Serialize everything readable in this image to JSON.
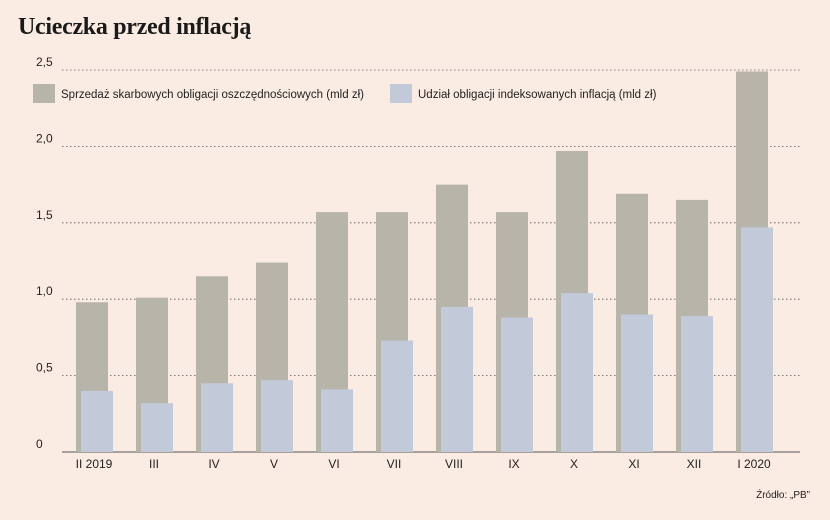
{
  "title": "Ucieczka przed inflacją",
  "source": "Źródło: „PB”",
  "colors": {
    "series1": "#b7b4a9",
    "series2": "#c2cad9",
    "grid": "#555555",
    "background": "#fbece3"
  },
  "chart_data": {
    "type": "bar",
    "categories": [
      "II 2019",
      "III",
      "IV",
      "V",
      "VI",
      "VII",
      "VIII",
      "IX",
      "X",
      "XI",
      "XII",
      "I 2020"
    ],
    "series": [
      {
        "name": "Sprzedaż skarbowych obligacji oszczędnościowych (mld zł)",
        "values": [
          0.98,
          1.01,
          1.15,
          1.24,
          1.57,
          1.57,
          1.75,
          1.57,
          1.97,
          1.69,
          1.65,
          2.49
        ]
      },
      {
        "name": "Udział obligacji indeksowanych inflacją (mld zł)",
        "values": [
          0.4,
          0.32,
          0.45,
          0.47,
          0.41,
          0.73,
          0.95,
          0.88,
          1.04,
          0.9,
          0.89,
          1.47
        ]
      }
    ],
    "yticks": [
      "0",
      "0,5",
      "1,0",
      "1,5",
      "2,0",
      "2,5"
    ],
    "ylim": [
      0,
      2.5
    ],
    "grid": true,
    "legend": "top-left"
  }
}
